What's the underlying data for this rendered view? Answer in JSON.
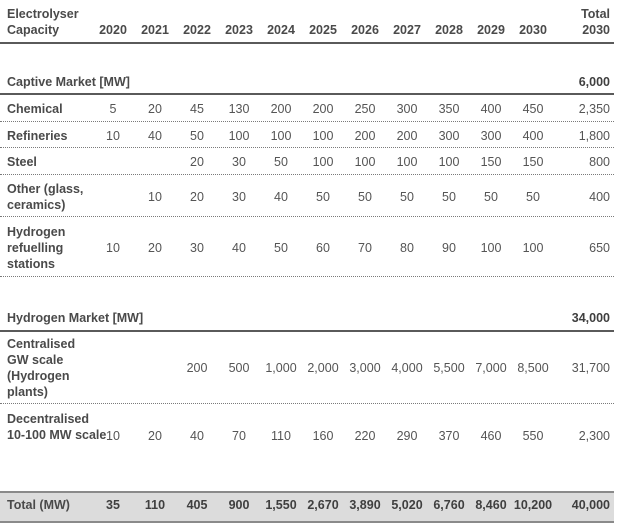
{
  "header": {
    "label": "Electrolyser\nCapacity",
    "years": [
      "2020",
      "2021",
      "2022",
      "2023",
      "2024",
      "2025",
      "2026",
      "2027",
      "2028",
      "2029",
      "2030"
    ],
    "total": "Total\n2030"
  },
  "captive": {
    "title": "Captive Market [MW]",
    "total": "6,000",
    "rows": [
      {
        "label": "Chemical",
        "values": [
          "5",
          "20",
          "45",
          "130",
          "200",
          "200",
          "250",
          "300",
          "350",
          "400",
          "450"
        ],
        "total": "2,350"
      },
      {
        "label": "Refineries",
        "values": [
          "10",
          "40",
          "50",
          "100",
          "100",
          "100",
          "200",
          "200",
          "300",
          "300",
          "400"
        ],
        "total": "1,800"
      },
      {
        "label": "Steel",
        "values": [
          "",
          "",
          "20",
          "30",
          "50",
          "100",
          "100",
          "100",
          "100",
          "150",
          "150"
        ],
        "total": "800"
      },
      {
        "label": "Other (glass, ceramics)",
        "values": [
          "",
          "10",
          "20",
          "30",
          "40",
          "50",
          "50",
          "50",
          "50",
          "50",
          "50"
        ],
        "total": "400"
      },
      {
        "label": "Hydrogen refuelling stations",
        "values": [
          "10",
          "20",
          "30",
          "40",
          "50",
          "60",
          "70",
          "80",
          "90",
          "100",
          "100"
        ],
        "total": "650"
      }
    ]
  },
  "hydrogen": {
    "title": "Hydrogen Market [MW]",
    "total": "34,000",
    "rows": [
      {
        "label": "Centralised GW scale (Hydrogen plants)",
        "values": [
          "",
          "",
          "200",
          "500",
          "1,000",
          "2,000",
          "3,000",
          "4,000",
          "5,500",
          "7,000",
          "8,500"
        ],
        "total": "31,700"
      },
      {
        "label": "Decentralised 10-100 MW scale",
        "values": [
          "10",
          "20",
          "40",
          "70",
          "110",
          "160",
          "220",
          "290",
          "370",
          "460",
          "550"
        ],
        "total": "2,300"
      }
    ]
  },
  "totals": {
    "label": "Total (MW)",
    "values": [
      "35",
      "110",
      "405",
      "900",
      "1,550",
      "2,670",
      "3,890",
      "5,020",
      "6,760",
      "8,460",
      "10,200"
    ],
    "total": "40,000"
  }
}
